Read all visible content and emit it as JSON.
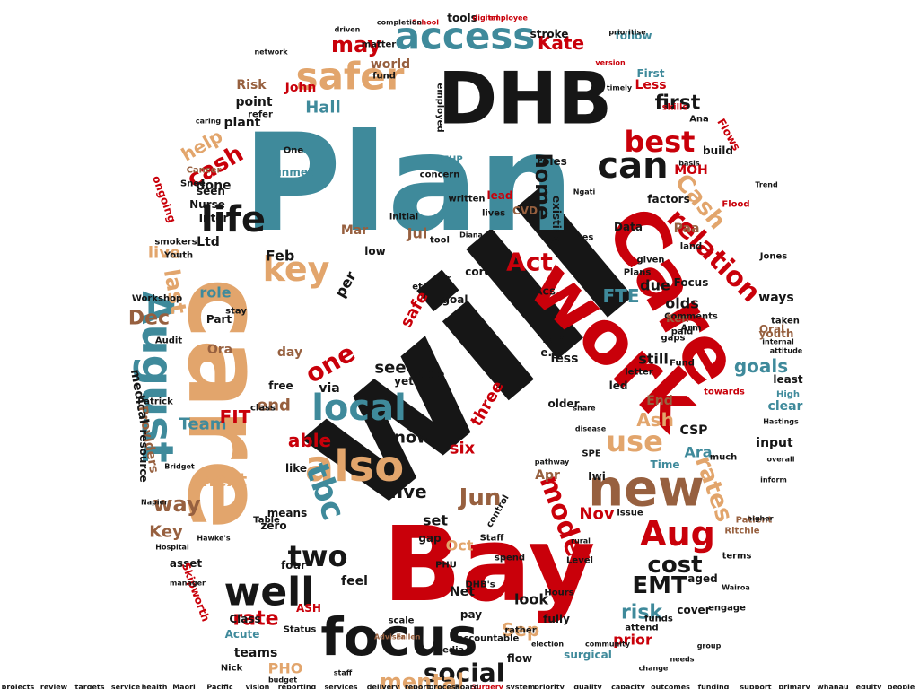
{
  "colors": {
    "teal": "#3f8a9b",
    "red": "#c9000a",
    "tan": "#e2a56c",
    "brown": "#97603f",
    "black": "#161616"
  },
  "words": [
    {
      "text": "will",
      "color": "black"
    },
    {
      "text": "Plan",
      "color": "teal"
    },
    {
      "text": "Bay",
      "color": "red"
    },
    {
      "text": "care",
      "color": "tan"
    },
    {
      "text": "Care",
      "color": "red"
    },
    {
      "text": "work",
      "color": "red"
    },
    {
      "text": "DHB",
      "color": "black"
    },
    {
      "text": "focus",
      "color": "black"
    },
    {
      "text": "new",
      "color": "brown"
    },
    {
      "text": "August",
      "color": "teal"
    },
    {
      "text": "access",
      "color": "teal"
    },
    {
      "text": "safer",
      "color": "tan"
    },
    {
      "text": "also",
      "color": "tan"
    },
    {
      "text": "well",
      "color": "black"
    },
    {
      "text": "life",
      "color": "black"
    },
    {
      "text": "can",
      "color": "black"
    },
    {
      "text": "local",
      "color": "teal"
    },
    {
      "text": "key",
      "color": "tan"
    },
    {
      "text": "Aug",
      "color": "red"
    },
    {
      "text": "best",
      "color": "red"
    },
    {
      "text": "relation",
      "color": "red"
    },
    {
      "text": "Cash",
      "color": "tan"
    },
    {
      "text": "use",
      "color": "tan"
    },
    {
      "text": "two",
      "color": "black"
    },
    {
      "text": "social",
      "color": "black"
    },
    {
      "text": "mental",
      "color": "tan"
    },
    {
      "text": "model",
      "color": "red"
    },
    {
      "text": "cost",
      "color": "black"
    },
    {
      "text": "EMT",
      "color": "black"
    },
    {
      "text": "rates",
      "color": "tan"
    },
    {
      "text": "Jun",
      "color": "brown"
    },
    {
      "text": "tbc",
      "color": "teal"
    },
    {
      "text": "one",
      "color": "red"
    },
    {
      "text": "Act",
      "color": "red"
    },
    {
      "text": "may",
      "color": "red"
    },
    {
      "text": "cash",
      "color": "red"
    },
    {
      "text": "help",
      "color": "tan"
    },
    {
      "text": "way",
      "color": "brown"
    },
    {
      "text": "Dec",
      "color": "brown"
    },
    {
      "text": "goals",
      "color": "teal"
    },
    {
      "text": "rate",
      "color": "red"
    },
    {
      "text": "risk",
      "color": "teal"
    },
    {
      "text": "Sep",
      "color": "tan"
    },
    {
      "text": "next",
      "color": "tan"
    },
    {
      "text": "home",
      "color": "black"
    },
    {
      "text": "first",
      "color": "black"
    },
    {
      "text": "Kate",
      "color": "red"
    },
    {
      "text": "Hall",
      "color": "teal"
    },
    {
      "text": "John",
      "color": "red"
    },
    {
      "text": "Ash",
      "color": "tan"
    },
    {
      "text": "Nov",
      "color": "red"
    },
    {
      "text": "prior",
      "color": "red"
    },
    {
      "text": "FTE",
      "color": "teal"
    },
    {
      "text": "able",
      "color": "red"
    },
    {
      "text": "five",
      "color": "black"
    },
    {
      "text": "now",
      "color": "black"
    },
    {
      "text": "see",
      "color": "black"
    },
    {
      "text": "look",
      "color": "black"
    },
    {
      "text": "last",
      "color": "tan"
    },
    {
      "text": "live",
      "color": "tan"
    },
    {
      "text": "Team",
      "color": "teal"
    },
    {
      "text": "FIT",
      "color": "red"
    },
    {
      "text": "end",
      "color": "brown"
    },
    {
      "text": "Key",
      "color": "brown"
    },
    {
      "text": "PHO",
      "color": "tan"
    },
    {
      "text": "Oct",
      "color": "tan"
    },
    {
      "text": "Ara",
      "color": "teal"
    },
    {
      "text": "stroke",
      "color": "black"
    },
    {
      "text": "tools",
      "color": "black"
    },
    {
      "text": "world",
      "color": "brown"
    },
    {
      "text": "plant",
      "color": "black"
    },
    {
      "text": "point",
      "color": "black"
    },
    {
      "text": "Risk",
      "color": "brown"
    },
    {
      "text": "Ltd",
      "color": "black"
    },
    {
      "text": "Feb",
      "color": "black"
    },
    {
      "text": "Mar",
      "color": "brown"
    },
    {
      "text": "role",
      "color": "teal"
    },
    {
      "text": "Providers",
      "color": "brown"
    },
    {
      "text": "medical",
      "color": "black"
    },
    {
      "text": "resource",
      "color": "black"
    },
    {
      "text": "Paa",
      "color": "brown"
    },
    {
      "text": "due",
      "color": "black"
    },
    {
      "text": "olds",
      "color": "black"
    },
    {
      "text": "Ken",
      "color": "brown"
    },
    {
      "text": "still",
      "color": "black"
    },
    {
      "text": "End",
      "color": "brown"
    },
    {
      "text": "CSP",
      "color": "black"
    },
    {
      "text": "input",
      "color": "black"
    },
    {
      "text": "clear",
      "color": "teal"
    },
    {
      "text": "High",
      "color": "teal"
    },
    {
      "text": "least",
      "color": "black"
    },
    {
      "text": "youth",
      "color": "brown"
    },
    {
      "text": "taken",
      "color": "black"
    },
    {
      "text": "terms",
      "color": "black"
    },
    {
      "text": "cover",
      "color": "black"
    },
    {
      "text": "aged",
      "color": "black"
    },
    {
      "text": "fully",
      "color": "black"
    },
    {
      "text": "teams",
      "color": "black"
    },
    {
      "text": "Acute",
      "color": "teal"
    },
    {
      "text": "Nick",
      "color": "black"
    },
    {
      "text": "Class",
      "color": "black"
    },
    {
      "text": "asset",
      "color": "black"
    },
    {
      "text": "Skipworth",
      "color": "red"
    },
    {
      "text": "surgical",
      "color": "teal"
    },
    {
      "text": "flow",
      "color": "black"
    },
    {
      "text": "Net",
      "color": "black"
    },
    {
      "text": "pay",
      "color": "black"
    },
    {
      "text": "set",
      "color": "black"
    },
    {
      "text": "six",
      "color": "red"
    },
    {
      "text": "three",
      "color": "red"
    },
    {
      "text": "safe",
      "color": "red"
    },
    {
      "text": "per",
      "color": "black"
    },
    {
      "text": "Jul",
      "color": "brown"
    },
    {
      "text": "Less",
      "color": "red"
    },
    {
      "text": "Data",
      "color": "black"
    },
    {
      "text": "MOH",
      "color": "red"
    },
    {
      "text": "factors",
      "color": "black"
    },
    {
      "text": "Flows",
      "color": "red"
    },
    {
      "text": "build",
      "color": "black"
    },
    {
      "text": "Part",
      "color": "black"
    },
    {
      "text": "Ora",
      "color": "brown"
    },
    {
      "text": "day",
      "color": "brown"
    },
    {
      "text": "via",
      "color": "black"
    },
    {
      "text": "free",
      "color": "black"
    },
    {
      "text": "class",
      "color": "black"
    },
    {
      "text": "ongoing",
      "color": "red"
    },
    {
      "text": "done",
      "color": "black"
    },
    {
      "text": "seen",
      "color": "black"
    },
    {
      "text": "Nurse",
      "color": "black"
    },
    {
      "text": "Inter",
      "color": "black"
    },
    {
      "text": "Focus",
      "color": "black"
    },
    {
      "text": "existing",
      "color": "black"
    },
    {
      "text": "ways",
      "color": "black"
    },
    {
      "text": "Apr",
      "color": "brown"
    },
    {
      "text": "Time",
      "color": "teal"
    },
    {
      "text": "issue",
      "color": "black"
    },
    {
      "text": "zero",
      "color": "black"
    },
    {
      "text": "four",
      "color": "black"
    },
    {
      "text": "feel",
      "color": "black"
    },
    {
      "text": "means",
      "color": "black"
    },
    {
      "text": "like",
      "color": "black"
    },
    {
      "text": "control",
      "color": "black"
    },
    {
      "text": "spend",
      "color": "black"
    },
    {
      "text": "stay",
      "color": "black"
    },
    {
      "text": "Youth",
      "color": "black"
    },
    {
      "text": "Jones",
      "color": "black"
    },
    {
      "text": "Oral",
      "color": "brown"
    },
    {
      "text": "Arm",
      "color": "black"
    },
    {
      "text": "paid",
      "color": "black"
    },
    {
      "text": "Fund",
      "color": "black"
    },
    {
      "text": "Hours",
      "color": "black"
    },
    {
      "text": "letter",
      "color": "black"
    },
    {
      "text": "led",
      "color": "black"
    },
    {
      "text": "less",
      "color": "black"
    },
    {
      "text": "non",
      "color": "black"
    },
    {
      "text": "core",
      "color": "black"
    },
    {
      "text": "yet",
      "color": "black"
    },
    {
      "text": "ACS",
      "color": "black"
    },
    {
      "text": "DHB's",
      "color": "black"
    },
    {
      "text": "Level",
      "color": "black"
    },
    {
      "text": "Ritchie",
      "color": "brown"
    },
    {
      "text": "Patient",
      "color": "brown"
    },
    {
      "text": "towards",
      "color": "red"
    },
    {
      "text": "much",
      "color": "black"
    },
    {
      "text": "funds",
      "color": "black"
    },
    {
      "text": "attend",
      "color": "black"
    },
    {
      "text": "engage",
      "color": "black"
    },
    {
      "text": "media",
      "color": "black"
    },
    {
      "text": "scale",
      "color": "black"
    },
    {
      "text": "accountable",
      "color": "black"
    },
    {
      "text": "rather",
      "color": "black"
    },
    {
      "text": "Staff",
      "color": "black"
    },
    {
      "text": "gap",
      "color": "black"
    },
    {
      "text": "SPE",
      "color": "black"
    },
    {
      "text": "Iwi",
      "color": "black"
    },
    {
      "text": "table",
      "color": "black"
    },
    {
      "text": "e.g",
      "color": "black"
    },
    {
      "text": "lines",
      "color": "black"
    },
    {
      "text": "given",
      "color": "black"
    },
    {
      "text": "land",
      "color": "black"
    },
    {
      "text": "roles",
      "color": "black"
    },
    {
      "text": "follow",
      "color": "teal"
    },
    {
      "text": "First",
      "color": "teal"
    },
    {
      "text": "refer",
      "color": "black"
    },
    {
      "text": "employed",
      "color": "black"
    },
    {
      "text": "matter",
      "color": "black"
    },
    {
      "text": "fund",
      "color": "black"
    },
    {
      "text": "Snee",
      "color": "black"
    },
    {
      "text": "One",
      "color": "black"
    },
    {
      "text": "Cancer",
      "color": "brown"
    },
    {
      "text": "unmet",
      "color": "teal"
    },
    {
      "text": "NZHP",
      "color": "teal"
    },
    {
      "text": "Flood",
      "color": "red"
    },
    {
      "text": "Workshop",
      "color": "black"
    },
    {
      "text": "Ana",
      "color": "black"
    },
    {
      "text": "skills",
      "color": "red"
    },
    {
      "text": "Comments",
      "color": "black"
    },
    {
      "text": "Table",
      "color": "black"
    },
    {
      "text": "ASH",
      "color": "red"
    },
    {
      "text": "Status",
      "color": "black"
    },
    {
      "text": "etc",
      "color": "black"
    },
    {
      "text": "low",
      "color": "black"
    },
    {
      "text": "goal",
      "color": "black"
    },
    {
      "text": "Plans",
      "color": "black"
    },
    {
      "text": "older",
      "color": "black"
    },
    {
      "text": "gaps",
      "color": "black"
    },
    {
      "text": "lives",
      "color": "black"
    },
    {
      "text": "lead",
      "color": "red"
    },
    {
      "text": "CVD",
      "color": "brown"
    },
    {
      "text": "initial",
      "color": "black"
    },
    {
      "text": "concern",
      "color": "black"
    },
    {
      "text": "PHU",
      "color": "black"
    },
    {
      "text": "fair",
      "color": "black"
    },
    {
      "text": "written",
      "color": "black"
    },
    {
      "text": "tool",
      "color": "black"
    },
    {
      "text": "Audit",
      "color": "black"
    },
    {
      "text": "Patrick",
      "color": "black"
    },
    {
      "text": "smokers",
      "color": "black"
    },
    {
      "text": "Fallen",
      "color": "brown"
    },
    {
      "text": "Adviser",
      "color": "brown"
    },
    {
      "text": "Bridget",
      "color": "black"
    },
    {
      "text": "Hospital",
      "color": "black"
    },
    {
      "text": "manager",
      "color": "black"
    },
    {
      "text": "election",
      "color": "black"
    },
    {
      "text": "community",
      "color": "black"
    },
    {
      "text": "overall",
      "color": "black"
    },
    {
      "text": "inform",
      "color": "black"
    },
    {
      "text": "higher",
      "color": "black"
    },
    {
      "text": "Trend",
      "color": "black"
    },
    {
      "text": "internal",
      "color": "black"
    },
    {
      "text": "attitude",
      "color": "black"
    },
    {
      "text": "rural",
      "color": "black"
    },
    {
      "text": "share",
      "color": "black"
    },
    {
      "text": "pathway",
      "color": "black"
    },
    {
      "text": "Surgery",
      "color": "red"
    },
    {
      "text": "disease",
      "color": "black"
    },
    {
      "text": "School",
      "color": "red"
    },
    {
      "text": "completion",
      "color": "black"
    },
    {
      "text": "digital",
      "color": "red"
    },
    {
      "text": "employee",
      "color": "red"
    },
    {
      "text": "driven",
      "color": "black"
    },
    {
      "text": "network",
      "color": "black"
    },
    {
      "text": "prioritise",
      "color": "black"
    },
    {
      "text": "version",
      "color": "red"
    },
    {
      "text": "timely",
      "color": "black"
    },
    {
      "text": "basis",
      "color": "black"
    },
    {
      "text": "Ngati",
      "color": "black"
    },
    {
      "text": "caring",
      "color": "black"
    },
    {
      "text": "Diana",
      "color": "black"
    },
    {
      "text": "Maori",
      "color": "black"
    },
    {
      "text": "Pacific",
      "color": "black"
    },
    {
      "text": "vision",
      "color": "black"
    },
    {
      "text": "reporting",
      "color": "black"
    },
    {
      "text": "services",
      "color": "black"
    },
    {
      "text": "delivery",
      "color": "black"
    },
    {
      "text": "priority",
      "color": "black"
    },
    {
      "text": "quality",
      "color": "black"
    },
    {
      "text": "capacity",
      "color": "black"
    },
    {
      "text": "outcomes",
      "color": "black"
    },
    {
      "text": "funding",
      "color": "black"
    },
    {
      "text": "support",
      "color": "black"
    },
    {
      "text": "primary",
      "color": "black"
    },
    {
      "text": "whanau",
      "color": "black"
    },
    {
      "text": "equity",
      "color": "black"
    },
    {
      "text": "projects",
      "color": "black"
    },
    {
      "text": "review",
      "color": "black"
    },
    {
      "text": "targets",
      "color": "black"
    },
    {
      "text": "service",
      "color": "black"
    },
    {
      "text": "health",
      "color": "black"
    },
    {
      "text": "people",
      "color": "black"
    },
    {
      "text": "system",
      "color": "black"
    },
    {
      "text": "process",
      "color": "black"
    },
    {
      "text": "report",
      "color": "black"
    },
    {
      "text": "Board",
      "color": "black"
    },
    {
      "text": "budget",
      "color": "black"
    },
    {
      "text": "staff",
      "color": "black"
    },
    {
      "text": "change",
      "color": "black"
    },
    {
      "text": "needs",
      "color": "black"
    },
    {
      "text": "group",
      "color": "black"
    },
    {
      "text": "Hawke's",
      "color": "black"
    },
    {
      "text": "Napier",
      "color": "black"
    },
    {
      "text": "Wairoa",
      "color": "black"
    },
    {
      "text": "Hastings",
      "color": "black"
    }
  ]
}
